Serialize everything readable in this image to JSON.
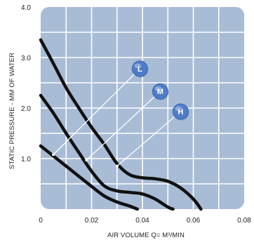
{
  "chart_data": {
    "type": "line",
    "title": "",
    "xlabel": "AIR VOLUME Q= M³/MIN",
    "ylabel": "STATIC PRESSURE - MM OF WATER",
    "xlim": [
      0,
      0.08
    ],
    "ylim": [
      0,
      4.0
    ],
    "x_ticks": [
      0,
      0.02,
      0.04,
      0.06,
      0.08
    ],
    "x_tick_labels": [
      "0",
      "0.02",
      "0.04",
      "0.06",
      "0.08"
    ],
    "y_ticks": [
      1.0,
      2.0,
      3.0,
      4.0
    ],
    "y_tick_labels": [
      "1.0",
      "2.0",
      "3.0",
      "4.0"
    ],
    "grid": true,
    "colors": {
      "plot_background": "#a8bcd6",
      "grid": "#ffffff",
      "curve": "#111111",
      "badge": "#4f7cc8",
      "leader": "#ffffff"
    },
    "series": [
      {
        "name": "L",
        "points": [
          [
            0,
            1.25
          ],
          [
            0.005,
            1.05
          ],
          [
            0.01,
            0.85
          ],
          [
            0.015,
            0.65
          ],
          [
            0.02,
            0.45
          ],
          [
            0.025,
            0.26
          ],
          [
            0.03,
            0.14
          ],
          [
            0.035,
            0.06
          ],
          [
            0.038,
            0
          ]
        ],
        "label_anchor": [
          0.005,
          1.08
        ],
        "label_position": [
          0.039,
          2.78
        ]
      },
      {
        "name": "M",
        "points": [
          [
            0,
            2.25
          ],
          [
            0.005,
            1.9
          ],
          [
            0.01,
            1.5
          ],
          [
            0.015,
            1.12
          ],
          [
            0.02,
            0.75
          ],
          [
            0.025,
            0.46
          ],
          [
            0.03,
            0.36
          ],
          [
            0.035,
            0.33
          ],
          [
            0.04,
            0.3
          ],
          [
            0.045,
            0.2
          ],
          [
            0.05,
            0.04
          ],
          [
            0.052,
            0
          ]
        ],
        "label_anchor": [
          0.018,
          0.97
        ],
        "label_position": [
          0.047,
          2.33
        ]
      },
      {
        "name": "H",
        "points": [
          [
            0,
            3.35
          ],
          [
            0.005,
            2.88
          ],
          [
            0.01,
            2.4
          ],
          [
            0.015,
            2.0
          ],
          [
            0.02,
            1.62
          ],
          [
            0.025,
            1.28
          ],
          [
            0.03,
            0.9
          ],
          [
            0.035,
            0.68
          ],
          [
            0.04,
            0.62
          ],
          [
            0.045,
            0.6
          ],
          [
            0.05,
            0.55
          ],
          [
            0.055,
            0.42
          ],
          [
            0.06,
            0.2
          ],
          [
            0.063,
            0
          ]
        ],
        "label_anchor": [
          0.03,
          0.85
        ],
        "label_position": [
          0.055,
          1.93
        ]
      }
    ]
  }
}
